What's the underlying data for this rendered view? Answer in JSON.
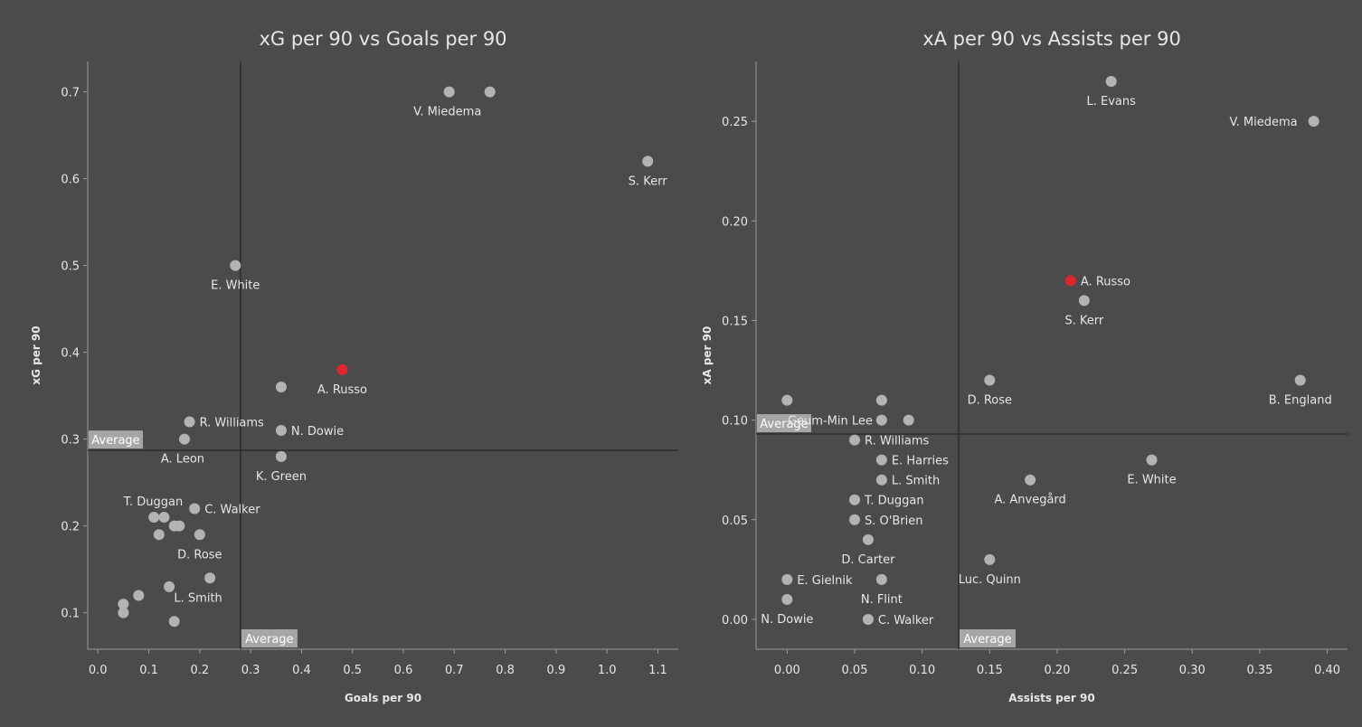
{
  "colors": {
    "background": "#4b4b4b",
    "point": "#b3b3b3",
    "highlight": "#e0262d",
    "axis": "#9a9a9a",
    "average_line": "#2d2d2d",
    "average_box": "#a6a6a6",
    "text": "#e6e6e6"
  },
  "chart_data": [
    {
      "type": "scatter",
      "title": "xG per 90 vs Goals per 90",
      "xlabel": "Goals per 90",
      "ylabel": "xG per 90",
      "xlim": [
        -0.02,
        1.14
      ],
      "ylim": [
        0.058,
        0.735
      ],
      "x_ticks": [
        0.0,
        0.1,
        0.2,
        0.3,
        0.4,
        0.5,
        0.6,
        0.7,
        0.8,
        0.9,
        1.0,
        1.1
      ],
      "x_tick_labels": [
        "0.0",
        "0.1",
        "0.2",
        "0.3",
        "0.4",
        "0.5",
        "0.6",
        "0.7",
        "0.8",
        "0.9",
        "1.0",
        "1.1"
      ],
      "y_ticks": [
        0.1,
        0.2,
        0.3,
        0.4,
        0.5,
        0.6,
        0.7
      ],
      "y_tick_labels": [
        "0.1",
        "0.2",
        "0.3",
        "0.4",
        "0.5",
        "0.6",
        "0.7"
      ],
      "average": {
        "x": 0.28,
        "y": 0.287,
        "x_label": "Average",
        "y_label": "Average"
      },
      "grid": false,
      "points": [
        {
          "x": 0.69,
          "y": 0.7
        },
        {
          "x": 0.77,
          "y": 0.7,
          "label": "V. Miedema",
          "anchor": "left"
        },
        {
          "x": 1.08,
          "y": 0.62,
          "label": "S. Kerr",
          "anchor": "below"
        },
        {
          "x": 0.27,
          "y": 0.5,
          "label": "E. White",
          "anchor": "below"
        },
        {
          "x": 0.48,
          "y": 0.38,
          "label": "A. Russo",
          "anchor": "below",
          "highlight": true
        },
        {
          "x": 0.36,
          "y": 0.36
        },
        {
          "x": 0.36,
          "y": 0.31,
          "label": "N. Dowie",
          "anchor": "right"
        },
        {
          "x": 0.36,
          "y": 0.28,
          "label": "K. Green",
          "anchor": "below"
        },
        {
          "x": 0.18,
          "y": 0.32,
          "label": "R. Williams",
          "anchor": "right"
        },
        {
          "x": 0.17,
          "y": 0.3,
          "label": "A. Leon",
          "anchor": "below"
        },
        {
          "x": 0.19,
          "y": 0.22,
          "label": "C. Walker",
          "anchor": "right"
        },
        {
          "x": 0.11,
          "y": 0.21
        },
        {
          "x": 0.13,
          "y": 0.21,
          "label": "T. Duggan",
          "anchor": "above"
        },
        {
          "x": 0.12,
          "y": 0.19
        },
        {
          "x": 0.15,
          "y": 0.2
        },
        {
          "x": 0.16,
          "y": 0.2
        },
        {
          "x": 0.2,
          "y": 0.19,
          "label": "D. Rose",
          "anchor": "below"
        },
        {
          "x": 0.22,
          "y": 0.14,
          "label": "L. Smith",
          "anchor": "below"
        },
        {
          "x": 0.14,
          "y": 0.13
        },
        {
          "x": 0.08,
          "y": 0.12
        },
        {
          "x": 0.05,
          "y": 0.11
        },
        {
          "x": 0.05,
          "y": 0.1
        },
        {
          "x": 0.15,
          "y": 0.09
        }
      ]
    },
    {
      "type": "scatter",
      "title": "xA per 90 vs Assists per 90",
      "xlabel": "Assists per 90",
      "ylabel": "xA per 90",
      "xlim": [
        -0.023,
        0.415
      ],
      "ylim": [
        -0.015,
        0.28
      ],
      "x_ticks": [
        0.0,
        0.05,
        0.1,
        0.15,
        0.2,
        0.25,
        0.3,
        0.35,
        0.4
      ],
      "x_tick_labels": [
        "0.00",
        "0.05",
        "0.10",
        "0.15",
        "0.20",
        "0.25",
        "0.30",
        "0.35",
        "0.40"
      ],
      "y_ticks": [
        0.0,
        0.05,
        0.1,
        0.15,
        0.2,
        0.25
      ],
      "y_tick_labels": [
        "0.00",
        "0.05",
        "0.10",
        "0.15",
        "0.20",
        "0.25"
      ],
      "average": {
        "x": 0.127,
        "y": 0.093,
        "x_label": "Average",
        "y_label": "Average"
      },
      "grid": false,
      "points": [
        {
          "x": 0.24,
          "y": 0.27,
          "label": "L. Evans",
          "anchor": "below"
        },
        {
          "x": 0.39,
          "y": 0.25,
          "label": "V. Miedema",
          "anchor": "left"
        },
        {
          "x": 0.21,
          "y": 0.17,
          "label": "A. Russo",
          "anchor": "right",
          "highlight": true
        },
        {
          "x": 0.22,
          "y": 0.16,
          "label": "S. Kerr",
          "anchor": "below"
        },
        {
          "x": 0.15,
          "y": 0.12,
          "label": "D. Rose",
          "anchor": "below"
        },
        {
          "x": 0.38,
          "y": 0.12,
          "label": "B. England",
          "anchor": "below"
        },
        {
          "x": 0.0,
          "y": 0.11
        },
        {
          "x": 0.07,
          "y": 0.11
        },
        {
          "x": 0.07,
          "y": 0.1,
          "label": "Geum-Min Lee",
          "anchor": "left"
        },
        {
          "x": 0.09,
          "y": 0.1
        },
        {
          "x": 0.05,
          "y": 0.09,
          "label": "R. Williams",
          "anchor": "right"
        },
        {
          "x": 0.07,
          "y": 0.08,
          "label": "E. Harries",
          "anchor": "right"
        },
        {
          "x": 0.27,
          "y": 0.08,
          "label": "E. White",
          "anchor": "below"
        },
        {
          "x": 0.07,
          "y": 0.07,
          "label": "L. Smith",
          "anchor": "right"
        },
        {
          "x": 0.18,
          "y": 0.07,
          "label": "A. Anvegård",
          "anchor": "below"
        },
        {
          "x": 0.05,
          "y": 0.06,
          "label": "T. Duggan",
          "anchor": "right"
        },
        {
          "x": 0.05,
          "y": 0.05,
          "label": "S. O'Brien",
          "anchor": "right"
        },
        {
          "x": 0.06,
          "y": 0.04,
          "label": "D. Carter",
          "anchor": "below"
        },
        {
          "x": 0.15,
          "y": 0.03,
          "label": "Luc. Quinn",
          "anchor": "below"
        },
        {
          "x": 0.0,
          "y": 0.02,
          "label": "E. Gielnik",
          "anchor": "right"
        },
        {
          "x": 0.07,
          "y": 0.02,
          "label": "N. Flint",
          "anchor": "below"
        },
        {
          "x": 0.0,
          "y": 0.01,
          "label": "N. Dowie",
          "anchor": "below"
        },
        {
          "x": 0.06,
          "y": 0.0,
          "label": "C. Walker",
          "anchor": "right"
        }
      ]
    }
  ]
}
